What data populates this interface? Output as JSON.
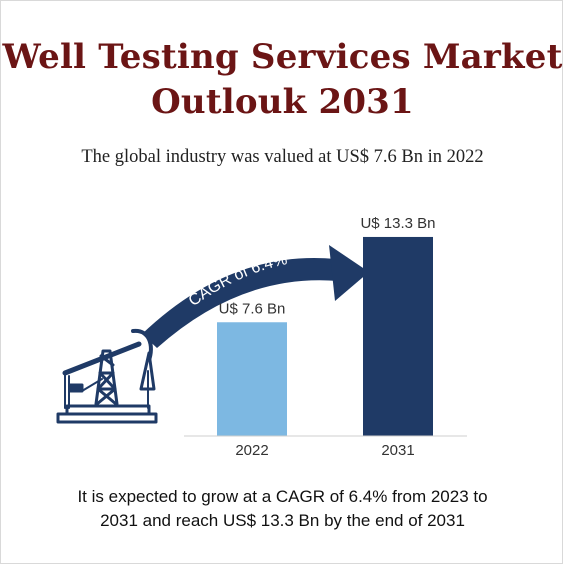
{
  "title": {
    "line1": "Well Testing Services Market",
    "line2": "Outlouk 2031"
  },
  "subtitle": "The global industry was valued at US$ 7.6 Bn in 2022",
  "cagr_label": "CAGR of 6.4%",
  "footer": {
    "line1": "It is expected to grow at a CAGR of 6.4% from 2023 to",
    "line2": "2031 and reach US$ 13.3 Bn by the end of 2031"
  },
  "icons": {
    "pump": "oil-pumpjack-icon",
    "arrow": "curved-arrow-icon"
  },
  "colors": {
    "title": "#6b1515",
    "bar_2022": "#7db8e2",
    "bar_2031": "#1f3a66",
    "arrow": "#1f3a66",
    "icon": "#1f3a66"
  },
  "chart_data": {
    "type": "bar",
    "categories": [
      "2022",
      "2031"
    ],
    "values": [
      7.6,
      13.3
    ],
    "data_labels": [
      "U$ 7.6 Bn",
      "U$ 13.3 Bn"
    ],
    "ylim": [
      0,
      14.7
    ],
    "grid": false
  }
}
